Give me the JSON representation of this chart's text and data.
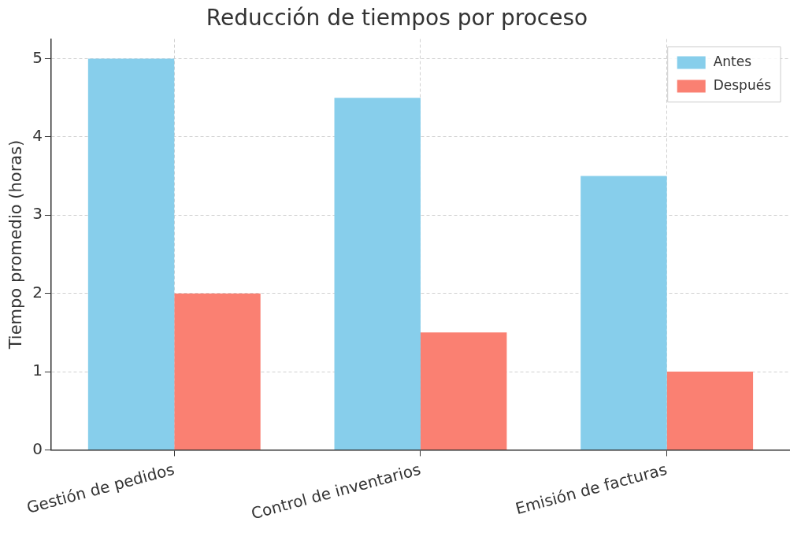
{
  "chart_data": {
    "type": "bar",
    "title": "Reducción de tiempos por proceso",
    "ylabel": "Tiempo promedio (horas)",
    "categories": [
      "Gestión de pedidos",
      "Control de inventarios",
      "Emisión de facturas"
    ],
    "series": [
      {
        "name": "Antes",
        "color": "#87ceeb",
        "values": [
          5,
          4.5,
          3.5
        ]
      },
      {
        "name": "Después",
        "color": "#fa8072",
        "values": [
          2,
          1.5,
          1
        ]
      }
    ],
    "ylim": [
      0,
      5.25
    ],
    "yticks": [
      0,
      1,
      2,
      3,
      4,
      5
    ],
    "grid": true,
    "legend": "top right"
  }
}
